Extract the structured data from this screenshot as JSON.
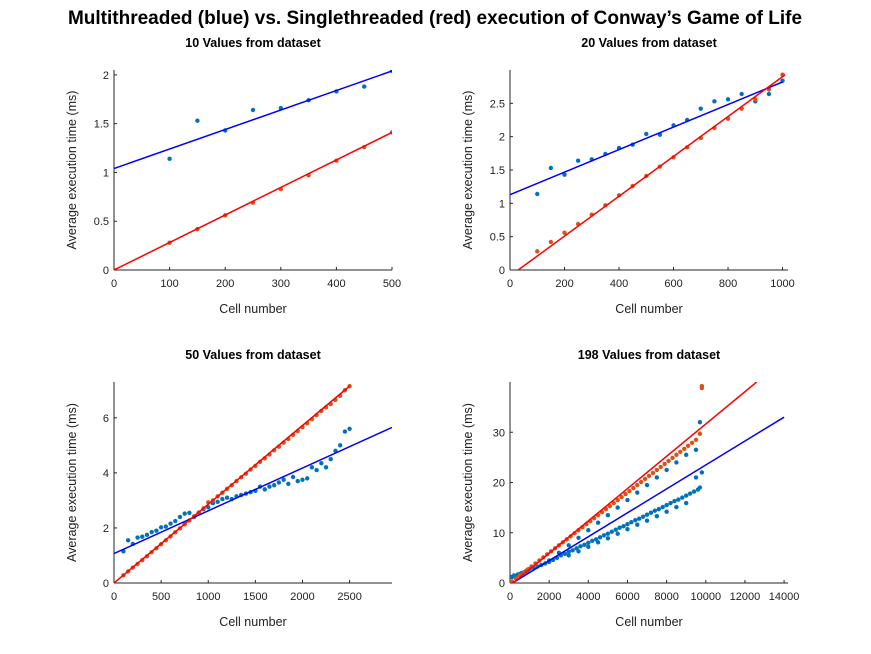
{
  "figure": {
    "suptitle": "Multithreaded (blue) vs. Singlethreaded (red) execution of Conway’s Game of Life",
    "colors": {
      "multi_line": "#0000ff",
      "multi_points": "#0072bd",
      "single_line": "#ff0000",
      "single_points": "#d95319"
    }
  },
  "chart_data": [
    {
      "type": "scatter",
      "title": "10 Values from dataset",
      "xlabel": "Cell number",
      "ylabel": "Average execution time (ms)",
      "xlim": [
        0,
        500
      ],
      "ylim": [
        0,
        2.05
      ],
      "xticks": [
        0,
        100,
        200,
        300,
        400,
        500
      ],
      "yticks": [
        0,
        0.5,
        1,
        1.5,
        2
      ],
      "series": [
        {
          "color": "#0072bd",
          "x": [
            100,
            150,
            200,
            250,
            300,
            350,
            400,
            450,
            500
          ],
          "y": [
            1.14,
            1.53,
            1.43,
            1.64,
            1.66,
            1.74,
            1.83,
            1.88,
            2.04
          ]
        },
        {
          "color": "#d95319",
          "x": [
            0,
            100,
            150,
            200,
            250,
            300,
            350,
            400,
            450,
            500
          ],
          "y": [
            0,
            0.28,
            0.42,
            0.56,
            0.69,
            0.83,
            0.97,
            1.12,
            1.26,
            1.41
          ]
        }
      ],
      "fits": [
        {
          "color": "#0000ff",
          "x": [
            0,
            500
          ],
          "y": [
            1.04,
            2.04
          ]
        },
        {
          "color": "#ff0000",
          "x": [
            0,
            500
          ],
          "y": [
            0,
            1.41
          ]
        }
      ]
    },
    {
      "type": "scatter",
      "title": "20 Values from dataset",
      "xlabel": "Cell number",
      "ylabel": "Average execution time (ms)",
      "xlim": [
        0,
        1020
      ],
      "ylim": [
        0,
        3.0
      ],
      "xticks": [
        0,
        200,
        400,
        600,
        800,
        1000
      ],
      "yticks": [
        0,
        0.5,
        1,
        1.5,
        2,
        2.5
      ],
      "series": [
        {
          "color": "#0072bd",
          "x": [
            100,
            150,
            200,
            250,
            300,
            350,
            400,
            450,
            500,
            550,
            600,
            650,
            700,
            750,
            800,
            850,
            900,
            950,
            1000
          ],
          "y": [
            1.14,
            1.53,
            1.43,
            1.64,
            1.66,
            1.74,
            1.83,
            1.88,
            2.04,
            2.03,
            2.17,
            2.25,
            2.42,
            2.53,
            2.56,
            2.64,
            2.53,
            2.64,
            2.84
          ]
        },
        {
          "color": "#d95319",
          "x": [
            100,
            150,
            200,
            250,
            300,
            350,
            400,
            450,
            500,
            550,
            600,
            650,
            700,
            750,
            800,
            850,
            900,
            950,
            1000
          ],
          "y": [
            0.28,
            0.42,
            0.56,
            0.69,
            0.83,
            0.97,
            1.12,
            1.26,
            1.41,
            1.55,
            1.69,
            1.84,
            1.98,
            2.13,
            2.27,
            2.42,
            2.56,
            2.71,
            2.93
          ]
        }
      ],
      "fits": [
        {
          "color": "#0000ff",
          "x": [
            0,
            1000
          ],
          "y": [
            1.13,
            2.82
          ]
        },
        {
          "color": "#ff0000",
          "x": [
            30,
            1010
          ],
          "y": [
            0,
            2.93
          ]
        }
      ]
    },
    {
      "type": "scatter",
      "title": "50 Values from dataset",
      "xlabel": "Cell number",
      "ylabel": "Average execution time (ms)",
      "xlim": [
        0,
        2950
      ],
      "ylim": [
        0,
        7.3
      ],
      "xticks": [
        0,
        500,
        1000,
        1500,
        2000,
        2500
      ],
      "yticks": [
        0,
        2,
        4,
        6
      ],
      "series": [
        {
          "color": "#0072bd",
          "x": [
            100,
            150,
            200,
            250,
            300,
            350,
            400,
            450,
            500,
            550,
            600,
            650,
            700,
            750,
            800,
            850,
            900,
            950,
            1000,
            1050,
            1100,
            1150,
            1200,
            1250,
            1300,
            1350,
            1400,
            1450,
            1500,
            1550,
            1600,
            1650,
            1700,
            1750,
            1800,
            1850,
            1900,
            1950,
            2000,
            2050,
            2100,
            2150,
            2200,
            2250,
            2300,
            2350,
            2400,
            2450,
            2500
          ],
          "y": [
            1.15,
            1.55,
            1.42,
            1.65,
            1.68,
            1.75,
            1.85,
            1.9,
            2.02,
            2.05,
            2.16,
            2.25,
            2.4,
            2.52,
            2.55,
            2.4,
            2.55,
            2.68,
            2.75,
            2.9,
            2.95,
            3.05,
            3.1,
            3.05,
            3.15,
            3.2,
            3.25,
            3.3,
            3.35,
            3.5,
            3.4,
            3.5,
            3.55,
            3.65,
            3.75,
            3.6,
            3.85,
            3.7,
            3.75,
            3.8,
            4.2,
            4.1,
            4.35,
            4.2,
            4.5,
            4.8,
            5.0,
            5.5,
            5.6
          ]
        },
        {
          "color": "#d95319",
          "x": [
            100,
            150,
            200,
            250,
            300,
            350,
            400,
            450,
            500,
            550,
            600,
            650,
            700,
            750,
            800,
            850,
            900,
            950,
            1000,
            1050,
            1100,
            1150,
            1200,
            1250,
            1300,
            1350,
            1400,
            1450,
            1500,
            1550,
            1600,
            1650,
            1700,
            1750,
            1800,
            1850,
            1900,
            1950,
            2000,
            2050,
            2100,
            2150,
            2200,
            2250,
            2300,
            2350,
            2400,
            2450,
            2500
          ],
          "y": [
            0.28,
            0.42,
            0.56,
            0.69,
            0.83,
            0.97,
            1.12,
            1.26,
            1.41,
            1.55,
            1.69,
            1.84,
            1.98,
            2.13,
            2.27,
            2.42,
            2.56,
            2.71,
            2.93,
            3.0,
            3.15,
            3.28,
            3.42,
            3.55,
            3.7,
            3.84,
            3.97,
            4.12,
            4.25,
            4.4,
            4.53,
            4.67,
            4.82,
            4.95,
            5.1,
            5.23,
            5.38,
            5.52,
            5.66,
            5.8,
            5.95,
            6.1,
            6.25,
            6.38,
            6.5,
            6.65,
            6.8,
            7.0,
            7.15
          ]
        }
      ],
      "fits": [
        {
          "color": "#0000ff",
          "x": [
            0,
            2950
          ],
          "y": [
            1.07,
            5.65
          ]
        },
        {
          "color": "#ff0000",
          "x": [
            0,
            2500
          ],
          "y": [
            0,
            7.15
          ]
        }
      ]
    },
    {
      "type": "scatter",
      "title": "198 Values from dataset",
      "xlabel": "Cell number",
      "ylabel": "Average execution time (ms)",
      "xlim": [
        0,
        14200
      ],
      "ylim": [
        0,
        40
      ],
      "xticks": [
        0,
        2000,
        4000,
        6000,
        8000,
        10000,
        12000,
        14000
      ],
      "yticks": [
        0,
        10,
        20,
        30
      ],
      "series": [
        {
          "color": "#0072bd",
          "x": [
            100,
            200,
            300,
            400,
            500,
            600,
            700,
            800,
            900,
            1000,
            1200,
            1400,
            1600,
            1800,
            2000,
            2200,
            2400,
            2600,
            2800,
            3000,
            3200,
            3400,
            3600,
            3800,
            4000,
            4200,
            4400,
            4600,
            4800,
            5000,
            5200,
            5400,
            5600,
            5800,
            6000,
            6200,
            6400,
            6600,
            6800,
            7000,
            7200,
            7400,
            7600,
            7800,
            8000,
            8200,
            8400,
            8600,
            8800,
            9000,
            9200,
            9400,
            9600,
            9700,
            9800,
            3000,
            3500,
            4000,
            4500,
            5000,
            5500,
            6000,
            6500,
            7000,
            7500,
            8000,
            8500,
            9000,
            9500,
            9700,
            2000,
            2500,
            3000,
            3500,
            4000,
            4500,
            5000,
            5500,
            6000,
            6500,
            7000,
            7500,
            8000,
            8500,
            9000,
            9500
          ],
          "y": [
            1.2,
            1.5,
            1.4,
            1.7,
            1.8,
            2.0,
            2.1,
            2.3,
            2.5,
            2.8,
            3.0,
            3.3,
            3.6,
            3.9,
            4.2,
            4.6,
            5.0,
            5.5,
            5.8,
            6.2,
            6.5,
            6.9,
            7.3,
            7.6,
            8.0,
            8.4,
            8.7,
            9.1,
            9.5,
            9.8,
            10.2,
            10.6,
            11.0,
            11.3,
            11.7,
            12.1,
            12.5,
            12.8,
            13.2,
            13.6,
            14.0,
            14.4,
            14.7,
            15.1,
            15.5,
            15.9,
            16.3,
            16.6,
            17.0,
            17.4,
            17.8,
            18.2,
            18.6,
            19.0,
            22.0,
            5.5,
            6.3,
            7.2,
            8.1,
            8.9,
            9.8,
            10.7,
            11.6,
            12.4,
            13.3,
            14.2,
            15.1,
            15.9,
            21.0,
            32.0,
            4.5,
            6.0,
            7.5,
            9.0,
            10.5,
            12.0,
            13.5,
            15.0,
            16.5,
            18.0,
            19.5,
            21.0,
            22.5,
            24.0,
            25.5,
            26.5
          ]
        },
        {
          "color": "#d95319",
          "x": [
            100,
            300,
            500,
            700,
            900,
            1100,
            1300,
            1500,
            1700,
            1900,
            2100,
            2300,
            2500,
            2700,
            2900,
            3100,
            3300,
            3500,
            3700,
            3900,
            4100,
            4300,
            4500,
            4700,
            4900,
            5100,
            5300,
            5500,
            5700,
            5900,
            6100,
            6300,
            6500,
            6700,
            6900,
            7100,
            7300,
            7500,
            7700,
            7900,
            8100,
            8300,
            8500,
            8700,
            8900,
            9100,
            9300,
            9500,
            9700,
            9800,
            9800
          ],
          "y": [
            0.3,
            0.9,
            1.5,
            2.1,
            2.7,
            3.3,
            3.9,
            4.5,
            5.1,
            5.7,
            6.3,
            6.9,
            7.5,
            8.1,
            8.7,
            9.3,
            9.9,
            10.5,
            11.1,
            11.7,
            12.3,
            12.9,
            13.5,
            14.1,
            14.7,
            15.3,
            15.9,
            16.5,
            17.1,
            17.7,
            18.3,
            18.9,
            19.5,
            20.1,
            20.7,
            21.3,
            21.9,
            22.5,
            23.1,
            23.7,
            24.3,
            24.9,
            25.5,
            26.1,
            26.7,
            27.3,
            27.9,
            28.5,
            29.7,
            38.8,
            39.2
          ]
        }
      ],
      "fits": [
        {
          "color": "#0000ff",
          "x": [
            0,
            14000
          ],
          "y": [
            -0.3,
            33.0
          ]
        },
        {
          "color": "#ff0000",
          "x": [
            0,
            12600
          ],
          "y": [
            -0.5,
            40.0
          ]
        }
      ]
    }
  ]
}
